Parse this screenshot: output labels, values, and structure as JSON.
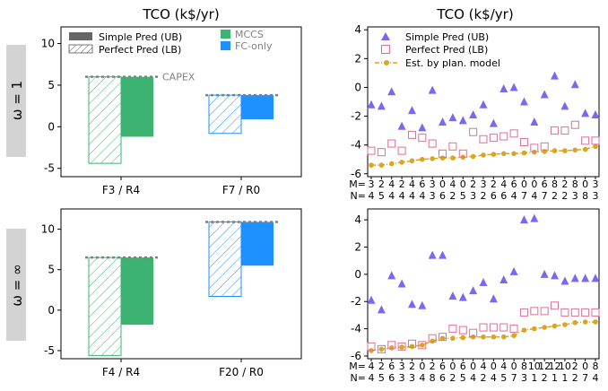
{
  "row_labels": [
    "ω = 1",
    "ω = ∞"
  ],
  "left_title": "TCO (k$/yr)",
  "right_title": "TCO (k$/yr)",
  "colors": {
    "mccs": "#3cb371",
    "fc_only": "#1e90ff",
    "capex_line": "#808080",
    "simple": "#7b68ee",
    "perfect": "#db7093",
    "plan": "#daa520",
    "side_label_bg": "#d3d3d3"
  },
  "left_legend": {
    "simple": "Simple Pred (UB)",
    "perfect": "Perfect Pred (LB)",
    "mccs": "MCCS",
    "fc_only": "FC-only",
    "capex": "CAPEX"
  },
  "right_legend": {
    "simple": "Simple Pred (UB)",
    "perfect": "Perfect Pred (LB)",
    "plan": "Est. by plan. model"
  },
  "chart_data": [
    {
      "type": "bar",
      "panel": "top-left",
      "title": "TCO (k$/yr)",
      "ylim": [
        -6,
        12
      ],
      "yticks": [
        -5,
        0,
        5,
        10
      ],
      "categories": [
        "F3 / R4",
        "F7 / R0"
      ],
      "series": [
        {
          "name": "Perfect Pred (LB)",
          "values": [
            -4.4,
            -0.8
          ]
        },
        {
          "name": "Simple Pred (UB)",
          "values": [
            -1.2,
            0.9
          ]
        }
      ],
      "capex": [
        6.0,
        3.8
      ],
      "legend_position": "upper-left"
    },
    {
      "type": "scatter",
      "panel": "top-right",
      "title": "TCO (k$/yr)",
      "ylim": [
        -6.2,
        4.2
      ],
      "yticks": [
        -6,
        -4,
        -2,
        0,
        2,
        4
      ],
      "M": [
        "3",
        "2",
        "4",
        "2",
        "4",
        "6",
        "3",
        "0",
        "4",
        "0",
        "2",
        "3",
        "2",
        "4",
        "6",
        "0",
        "0",
        "6",
        "8",
        "2",
        "8",
        "0",
        "3"
      ],
      "N": [
        "4",
        "5",
        "4",
        "4",
        "4",
        "4",
        "3",
        "6",
        "2",
        "5",
        "3",
        "2",
        "6",
        "6",
        "4",
        "7",
        "4",
        "7",
        "2",
        "2",
        "3",
        "8",
        "3"
      ],
      "series": [
        {
          "name": "Simple Pred (UB)",
          "values": [
            -1.2,
            -1.3,
            -0.3,
            -2.7,
            -1.6,
            -2.8,
            -0.2,
            -2.4,
            -2.1,
            -2.3,
            -1.9,
            -1.2,
            -2.5,
            -0.1,
            0.0,
            -1.0,
            -2.4,
            -0.5,
            0.8,
            -1.3,
            0.2,
            -1.8,
            -1.9
          ]
        },
        {
          "name": "Perfect Pred (LB)",
          "values": [
            -4.4,
            -4.5,
            -3.9,
            -4.4,
            -3.3,
            -3.5,
            -3.9,
            -4.6,
            -4.1,
            -4.6,
            -3.1,
            -3.6,
            -3.5,
            -3.4,
            -3.2,
            -3.8,
            -4.2,
            -4.1,
            -3.0,
            -3.0,
            -2.6,
            -3.7,
            -3.7
          ]
        },
        {
          "name": "Est. by plan. model",
          "values": [
            -5.4,
            -5.4,
            -5.3,
            -5.2,
            -5.1,
            -5.0,
            -4.95,
            -4.9,
            -4.9,
            -4.85,
            -4.8,
            -4.7,
            -4.65,
            -4.6,
            -4.6,
            -4.55,
            -4.5,
            -4.45,
            -4.4,
            -4.4,
            -4.35,
            -4.3,
            -4.1
          ]
        }
      ],
      "legend_position": "upper-left"
    },
    {
      "type": "bar",
      "panel": "bottom-left",
      "ylim": [
        -6,
        12.5
      ],
      "yticks": [
        -5,
        0,
        5,
        10
      ],
      "categories": [
        "F4 / R4",
        "F20 / R0"
      ],
      "series": [
        {
          "name": "Perfect Pred (LB)",
          "values": [
            -5.6,
            1.7
          ]
        },
        {
          "name": "Simple Pred (UB)",
          "values": [
            -1.8,
            5.5
          ]
        }
      ],
      "capex": [
        6.5,
        10.9
      ]
    },
    {
      "type": "scatter",
      "panel": "bottom-right",
      "ylim": [
        -6.2,
        4.8
      ],
      "yticks": [
        -6,
        -4,
        -2,
        0,
        2,
        4
      ],
      "M": [
        "4",
        "2",
        "6",
        "3",
        "2",
        "0",
        "2",
        "6",
        "0",
        "6",
        "0",
        "4",
        "0",
        "4",
        "0",
        "8",
        "10",
        "12",
        "12",
        "10",
        "2",
        "0",
        "8"
      ],
      "N": [
        "4",
        "5",
        "6",
        "3",
        "3",
        "4",
        "8",
        "6",
        "2",
        "5",
        "4",
        "2",
        "4",
        "5",
        "7",
        "3",
        "1",
        "2",
        "1",
        "1",
        "2",
        "7",
        "4"
      ],
      "series": [
        {
          "name": "Simple Pred (UB)",
          "values": [
            -1.9,
            -2.6,
            -0.1,
            -0.7,
            -2.2,
            -2.3,
            1.4,
            1.4,
            -1.6,
            -1.7,
            -1.2,
            -0.6,
            -1.8,
            -0.4,
            0.2,
            4.0,
            4.1,
            0.0,
            -0.1,
            -0.5,
            -0.3,
            -0.3,
            -0.3
          ]
        },
        {
          "name": "Perfect Pred (LB)",
          "values": [
            -5.3,
            -5.5,
            -5.2,
            -5.3,
            -5.1,
            -5.2,
            -4.7,
            -4.6,
            -4.0,
            -4.1,
            -4.3,
            -3.9,
            -3.9,
            -3.9,
            -4.0,
            -2.8,
            -2.7,
            -2.7,
            -2.3,
            -2.8,
            -2.8,
            -2.8,
            -2.8
          ]
        },
        {
          "name": "Est. by plan. model",
          "values": [
            -5.6,
            -5.5,
            -5.4,
            -5.35,
            -5.3,
            -5.2,
            -4.9,
            -4.7,
            -4.7,
            -4.65,
            -4.6,
            -4.6,
            -4.6,
            -4.6,
            -4.5,
            -4.1,
            -4.0,
            -3.9,
            -3.8,
            -3.7,
            -3.55,
            -3.5,
            -3.5
          ]
        }
      ]
    }
  ]
}
